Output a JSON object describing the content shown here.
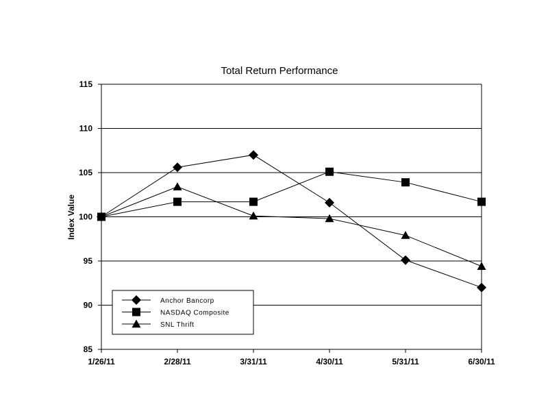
{
  "chart_data": {
    "type": "line",
    "title": "Total Return Performance",
    "xlabel": "",
    "ylabel": "Index Value",
    "categories": [
      "1/26/11",
      "2/28/11",
      "3/31/11",
      "4/30/11",
      "5/31/11",
      "6/30/11"
    ],
    "ylim": [
      85,
      115
    ],
    "yticks": [
      85,
      90,
      95,
      100,
      105,
      110,
      115
    ],
    "grid": "horizontal",
    "legend_position": "bottom-left",
    "series": [
      {
        "name": "Anchor Bancorp",
        "marker": "diamond",
        "values": [
          100,
          105.6,
          107.0,
          101.6,
          95.1,
          92.0
        ]
      },
      {
        "name": "NASDAQ Composite",
        "marker": "square",
        "values": [
          100,
          101.7,
          101.7,
          105.1,
          103.9,
          101.7
        ]
      },
      {
        "name": "SNL Thrift",
        "marker": "triangle",
        "values": [
          100,
          103.4,
          100.1,
          99.8,
          97.9,
          94.4
        ]
      }
    ],
    "colors": {
      "line": "#000000",
      "marker": "#000000",
      "grid": "#000000",
      "background": "#ffffff"
    }
  }
}
